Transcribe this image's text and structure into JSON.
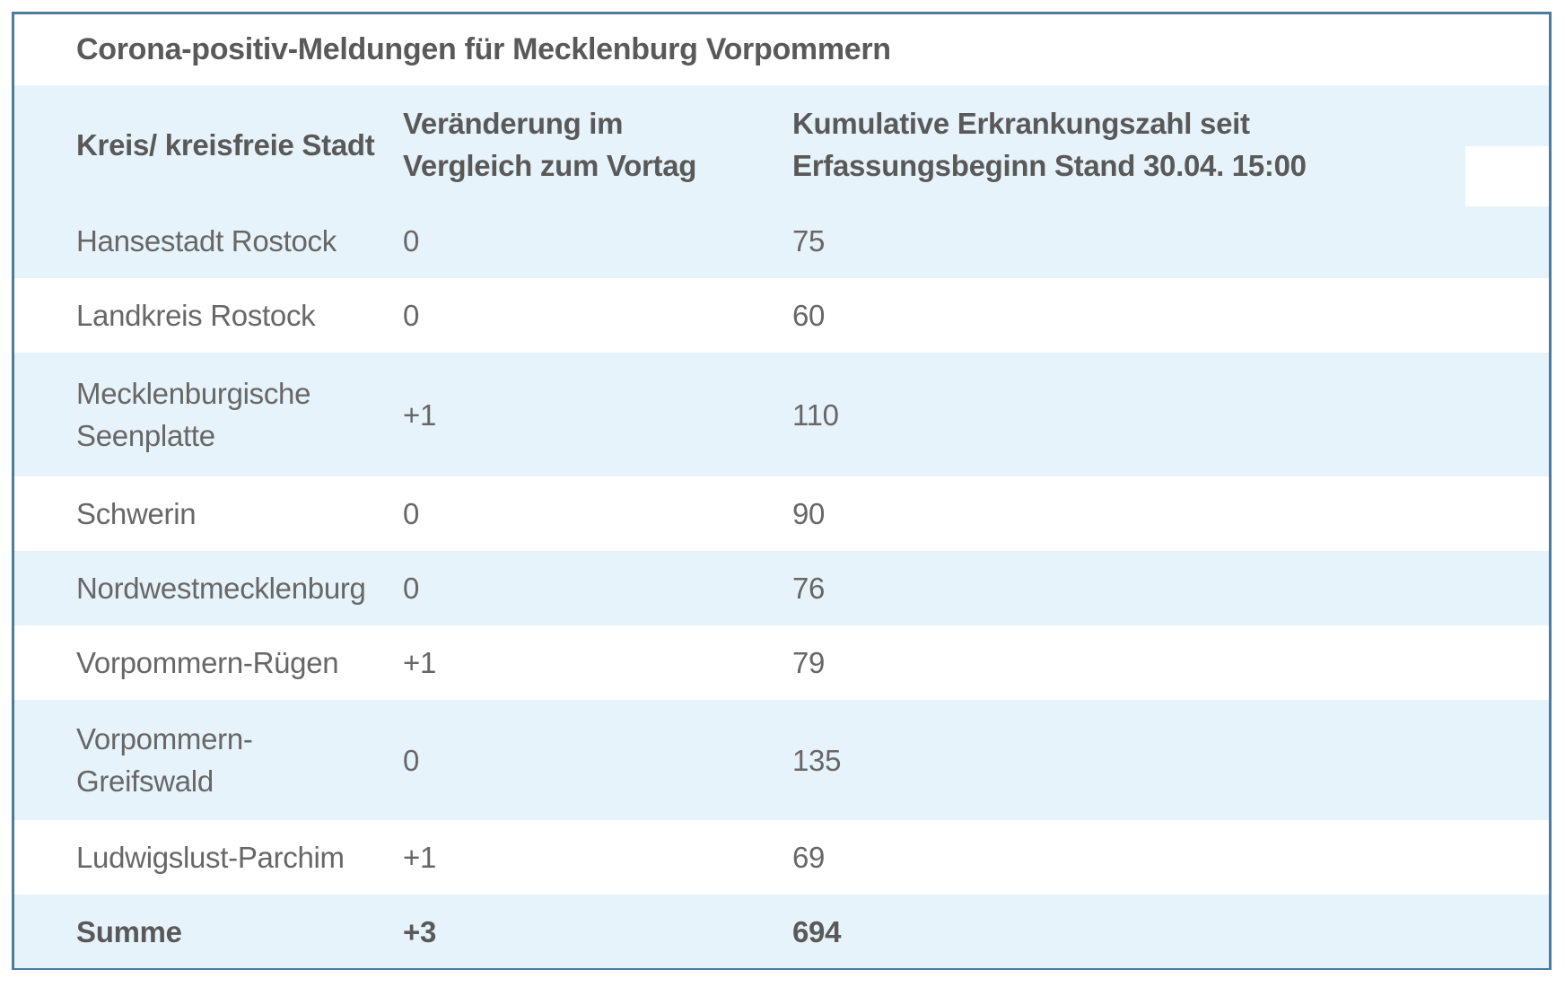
{
  "colors": {
    "border": "#4b7b9d",
    "stripe": "#e7f3fa",
    "text": "#676767",
    "text-bold": "#595959"
  },
  "table": {
    "title": "Corona-positiv-Meldungen für Mecklenburg Vorpommern",
    "columns": [
      "Kreis/ kreisfreie Stadt",
      "Veränderung im\nVergleich zum Vortag",
      "Kumulative Erkrankungszahl seit\nErfassungsbeginn Stand 30.04. 15:00"
    ],
    "rows": [
      {
        "kreis": "Hansestadt Rostock",
        "veraenderung": "0",
        "kumulativ": "75"
      },
      {
        "kreis": "Landkreis Rostock",
        "veraenderung": "0",
        "kumulativ": "60"
      },
      {
        "kreis": "Mecklenburgische\nSeenplatte",
        "veraenderung": "+1",
        "kumulativ": "110"
      },
      {
        "kreis": "Schwerin",
        "veraenderung": "0",
        "kumulativ": "90"
      },
      {
        "kreis": "Nordwestmecklenburg",
        "veraenderung": "0",
        "kumulativ": "76"
      },
      {
        "kreis": "Vorpommern-Rügen",
        "veraenderung": "+1",
        "kumulativ": "79"
      },
      {
        "kreis": "Vorpommern-\nGreifswald",
        "veraenderung": "0",
        "kumulativ": "135"
      },
      {
        "kreis": "Ludwigslust-Parchim",
        "veraenderung": "+1",
        "kumulativ": "69"
      },
      {
        "kreis": "Summe",
        "veraenderung": "+3",
        "kumulativ": "694"
      }
    ]
  }
}
